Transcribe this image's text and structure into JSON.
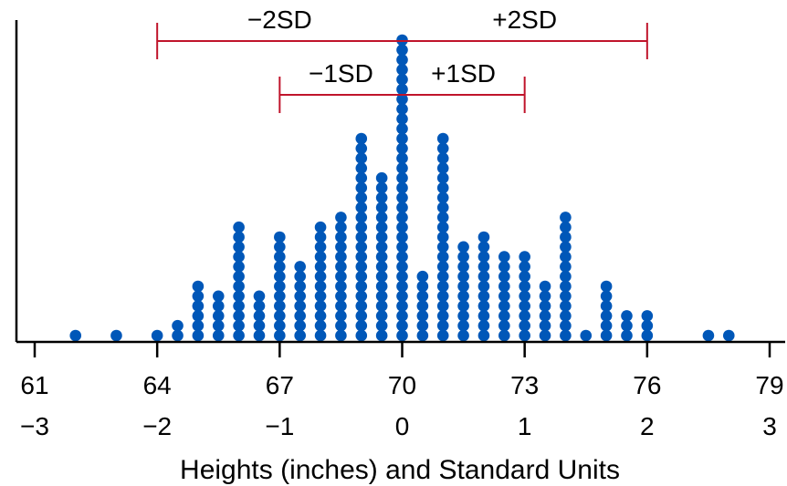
{
  "chart_data": {
    "type": "scatter",
    "subtype": "dot-plot",
    "xlabel": "Heights (inches) and Standard Units",
    "xlim": [
      61,
      79
    ],
    "x_ticks": [
      61,
      64,
      67,
      70,
      73,
      76,
      79
    ],
    "standard_unit_ticks": [
      "−3",
      "−2",
      "−1",
      "0",
      "1",
      "2",
      "3"
    ],
    "dot_color": "#0057b8",
    "bracket_color": "#c0142b",
    "stacks": [
      {
        "x": 62,
        "count": 1
      },
      {
        "x": 63,
        "count": 1
      },
      {
        "x": 64,
        "count": 1
      },
      {
        "x": 64.5,
        "count": 2
      },
      {
        "x": 65,
        "count": 6
      },
      {
        "x": 65.5,
        "count": 5
      },
      {
        "x": 66,
        "count": 12
      },
      {
        "x": 66.5,
        "count": 5
      },
      {
        "x": 67,
        "count": 11
      },
      {
        "x": 67.5,
        "count": 8
      },
      {
        "x": 68,
        "count": 12
      },
      {
        "x": 68.5,
        "count": 13
      },
      {
        "x": 69,
        "count": 21
      },
      {
        "x": 69.5,
        "count": 17
      },
      {
        "x": 70,
        "count": 31
      },
      {
        "x": 70.5,
        "count": 7
      },
      {
        "x": 71,
        "count": 21
      },
      {
        "x": 71.5,
        "count": 10
      },
      {
        "x": 72,
        "count": 11
      },
      {
        "x": 72.5,
        "count": 9
      },
      {
        "x": 73,
        "count": 9
      },
      {
        "x": 73.5,
        "count": 6
      },
      {
        "x": 74,
        "count": 13
      },
      {
        "x": 74.5,
        "count": 1
      },
      {
        "x": 75,
        "count": 6
      },
      {
        "x": 75.5,
        "count": 3
      },
      {
        "x": 76,
        "count": 3
      },
      {
        "x": 77.5,
        "count": 1
      },
      {
        "x": 78,
        "count": 1
      }
    ],
    "brackets": [
      {
        "from": 64,
        "to": 76,
        "left_label": "−2SD",
        "right_label": "+2SD"
      },
      {
        "from": 67,
        "to": 73,
        "left_label": "−1SD",
        "right_label": "+1SD"
      }
    ]
  }
}
